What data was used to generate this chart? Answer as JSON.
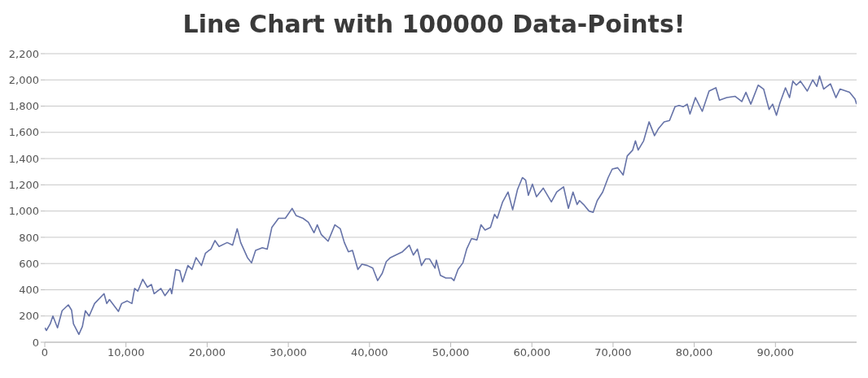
{
  "chart_data": {
    "type": "line",
    "title": "Line Chart with 100000 Data-Points!",
    "x": [
      0,
      200,
      667,
      1000,
      1567,
      2133,
      2900,
      3300,
      3533,
      4200,
      4633,
      5000,
      5467,
      6133,
      7300,
      7633,
      7967,
      9067,
      9467,
      10133,
      10733,
      11067,
      11467,
      12067,
      12633,
      13133,
      13467,
      14300,
      14800,
      15467,
      15633,
      16133,
      16633,
      16967,
      17633,
      18133,
      18633,
      19300,
      19800,
      20467,
      20967,
      21467,
      22467,
      23133,
      23700,
      24133,
      24967,
      25467,
      25967,
      26800,
      27400,
      27967,
      28800,
      29633,
      30467,
      30967,
      31800,
      32467,
      33167,
      33567,
      34067,
      34900,
      35733,
      36400,
      36900,
      37400,
      37900,
      38567,
      39067,
      39733,
      40400,
      41000,
      41567,
      42067,
      42567,
      43233,
      44067,
      44900,
      45400,
      45900,
      46400,
      46900,
      47400,
      48067,
      48233,
      48733,
      49400,
      50067,
      50400,
      50900,
      51500,
      51967,
      52567,
      53233,
      53733,
      54233,
      54900,
      55400,
      55733,
      56400,
      57067,
      57633,
      58233,
      58833,
      59233,
      59567,
      60067,
      60567,
      61400,
      62400,
      63067,
      63900,
      64500,
      65067,
      65567,
      65867,
      66371,
      67043,
      67547,
      68051,
      68723,
      69395,
      69899,
      70571,
      71243,
      71747,
      72419,
      72755,
      73091,
      73763,
      74435,
      75107,
      75611,
      76283,
      76955,
      77627,
      78131,
      78635,
      79139,
      79475,
      80147,
      80987,
      81827,
      82667,
      83104,
      84011,
      85019,
      85859,
      86363,
      86968,
      87875,
      88547,
      89219,
      89656,
      90126,
      90563,
      91235,
      91739,
      92142,
      92579,
      93083,
      93923,
      94595,
      95099,
      95435,
      95939,
      96779,
      97451,
      97955,
      99131,
      99803,
      99999
    ],
    "series": [
      {
        "color": "#6673a8",
        "values": [
          110,
          90,
          140,
          200,
          110,
          240,
          285,
          245,
          140,
          60,
          120,
          240,
          200,
          295,
          370,
          295,
          325,
          235,
          295,
          315,
          295,
          410,
          390,
          480,
          420,
          440,
          370,
          410,
          355,
          410,
          370,
          555,
          545,
          460,
          585,
          555,
          645,
          585,
          680,
          710,
          775,
          730,
          760,
          740,
          865,
          760,
          645,
          605,
          700,
          720,
          710,
          875,
          945,
          945,
          1020,
          965,
          945,
          915,
          835,
          895,
          820,
          770,
          895,
          865,
          760,
          690,
          700,
          555,
          595,
          585,
          565,
          470,
          525,
          615,
          645,
          665,
          690,
          740,
          665,
          710,
          585,
          635,
          635,
          565,
          625,
          510,
          490,
          490,
          470,
          555,
          605,
          710,
          790,
          780,
          895,
          855,
          875,
          975,
          945,
          1070,
          1145,
          1010,
          1165,
          1255,
          1235,
          1120,
          1205,
          1110,
          1175,
          1070,
          1145,
          1185,
          1020,
          1145,
          1050,
          1080,
          1050,
          1000,
          990,
          1080,
          1145,
          1255,
          1320,
          1330,
          1275,
          1420,
          1465,
          1535,
          1465,
          1535,
          1680,
          1575,
          1630,
          1680,
          1690,
          1795,
          1805,
          1795,
          1815,
          1740,
          1865,
          1760,
          1915,
          1940,
          1845,
          1865,
          1875,
          1835,
          1905,
          1815,
          1960,
          1930,
          1775,
          1815,
          1730,
          1825,
          1940,
          1865,
          1990,
          1960,
          1990,
          1915,
          2000,
          1950,
          2030,
          1930,
          1970,
          1865,
          1930,
          1905,
          1855,
          1815
        ]
      }
    ],
    "xlim": [
      0,
      99999
    ],
    "xticks": [
      0,
      {
        "value": 10000,
        "label": "10,000"
      },
      {
        "value": 20000,
        "label": "20,000"
      },
      {
        "value": 30000,
        "label": "30,000"
      },
      {
        "value": 40000,
        "label": "40,000"
      },
      {
        "value": 50000,
        "label": "50,000"
      },
      {
        "value": 60000,
        "label": "60,000"
      },
      {
        "value": 70000,
        "label": "70,000"
      },
      {
        "value": 80000,
        "label": "80,000"
      },
      {
        "value": 90000,
        "label": "90,000"
      }
    ],
    "ylim": [
      0,
      2200
    ],
    "yticks": [
      0,
      200,
      400,
      600,
      800,
      {
        "value": 1000,
        "label": "1,000"
      },
      {
        "value": 1200,
        "label": "1,200"
      },
      {
        "value": 1400,
        "label": "1,400"
      },
      {
        "value": 1600,
        "label": "1,600"
      },
      {
        "value": 1800,
        "label": "1,800"
      },
      {
        "value": 2000,
        "label": "2,000"
      },
      {
        "value": 2200,
        "label": "2,200"
      }
    ],
    "grid": "y",
    "legend": false,
    "marker": "none",
    "line_style": "solid"
  }
}
